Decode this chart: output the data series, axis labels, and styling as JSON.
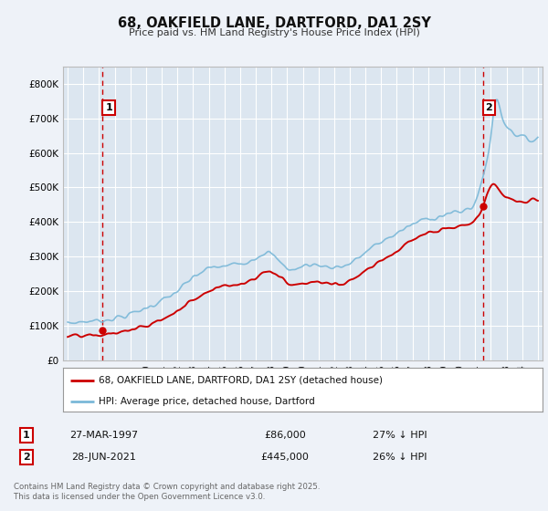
{
  "title": "68, OAKFIELD LANE, DARTFORD, DA1 2SY",
  "subtitle": "Price paid vs. HM Land Registry's House Price Index (HPI)",
  "background_color": "#eef2f8",
  "plot_background": "#dce6f0",
  "grid_color": "#ffffff",
  "red_line_color": "#cc0000",
  "blue_line_color": "#7ab8d8",
  "marker_color": "#cc0000",
  "dashed_line_color": "#cc0000",
  "legend_label_red": "68, OAKFIELD LANE, DARTFORD, DA1 2SY (detached house)",
  "legend_label_blue": "HPI: Average price, detached house, Dartford",
  "transaction1_label": "1",
  "transaction1_date": "27-MAR-1997",
  "transaction1_price": "£86,000",
  "transaction1_note": "27% ↓ HPI",
  "transaction2_label": "2",
  "transaction2_date": "28-JUN-2021",
  "transaction2_price": "£445,000",
  "transaction2_note": "26% ↓ HPI",
  "footer": "Contains HM Land Registry data © Crown copyright and database right 2025.\nThis data is licensed under the Open Government Licence v3.0.",
  "ylim": [
    0,
    850000
  ],
  "yticks": [
    0,
    100000,
    200000,
    300000,
    400000,
    500000,
    600000,
    700000,
    800000
  ],
  "ytick_labels": [
    "£0",
    "£100K",
    "£200K",
    "£300K",
    "£400K",
    "£500K",
    "£600K",
    "£700K",
    "£800K"
  ],
  "x_start_year": 1995,
  "x_end_year": 2025,
  "transaction1_year": 1997.22,
  "transaction1_price_val": 86000,
  "transaction2_year": 2021.49,
  "transaction2_price_val": 445000
}
